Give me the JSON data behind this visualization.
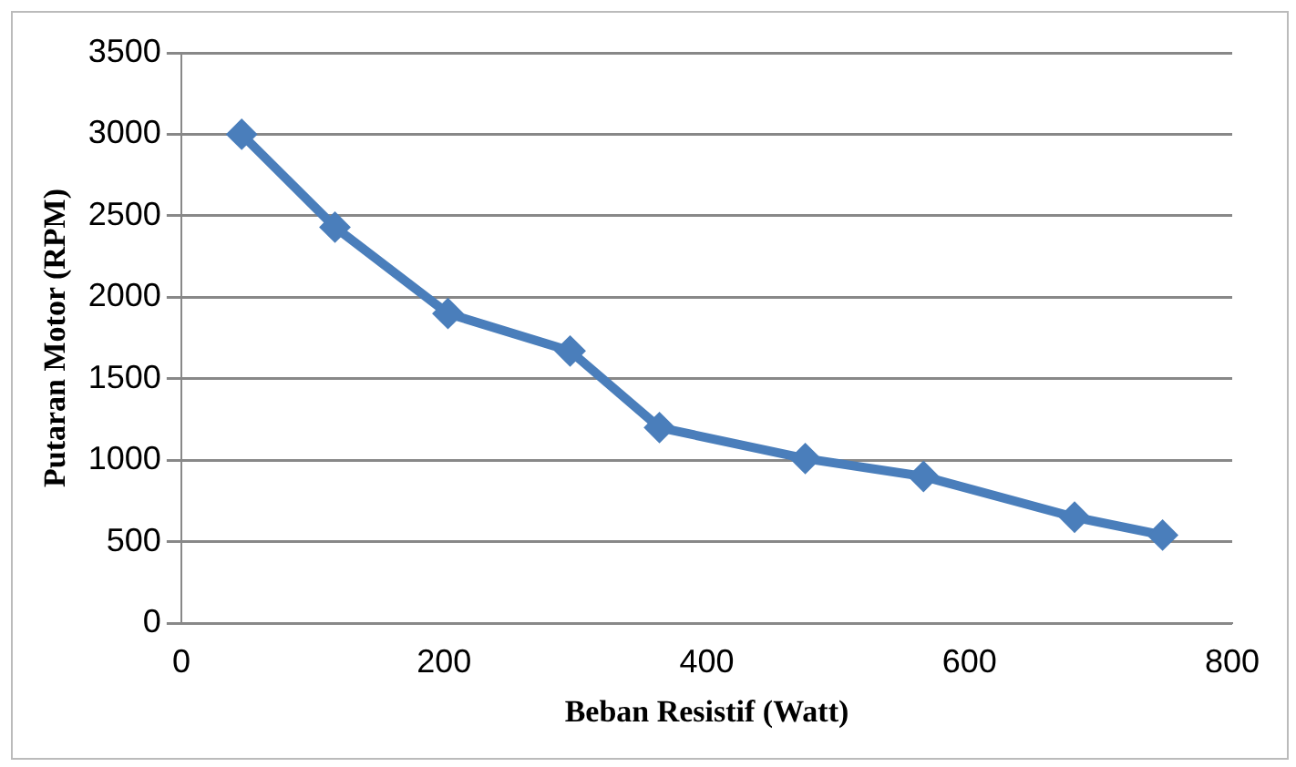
{
  "chart_data": {
    "type": "line",
    "xlabel": "Beban Resistif (Watt)",
    "ylabel": "Putaran Motor (RPM)",
    "x": [
      46,
      117,
      203,
      296,
      364,
      475,
      565,
      680,
      747
    ],
    "series": [
      {
        "color": "#4a7ebb",
        "values": [
          3000,
          2430,
          1900,
          1670,
          1200,
          1010,
          900,
          650,
          540
        ]
      }
    ],
    "xlim": [
      0,
      800
    ],
    "xticks": [
      0,
      200,
      400,
      600,
      800
    ],
    "ylim": [
      0,
      3500
    ],
    "yticks": [
      0,
      500,
      1000,
      1500,
      2000,
      2500,
      3000,
      3500
    ],
    "grid": "y",
    "legend": false,
    "marker": "diamond",
    "line_style": "solid"
  }
}
